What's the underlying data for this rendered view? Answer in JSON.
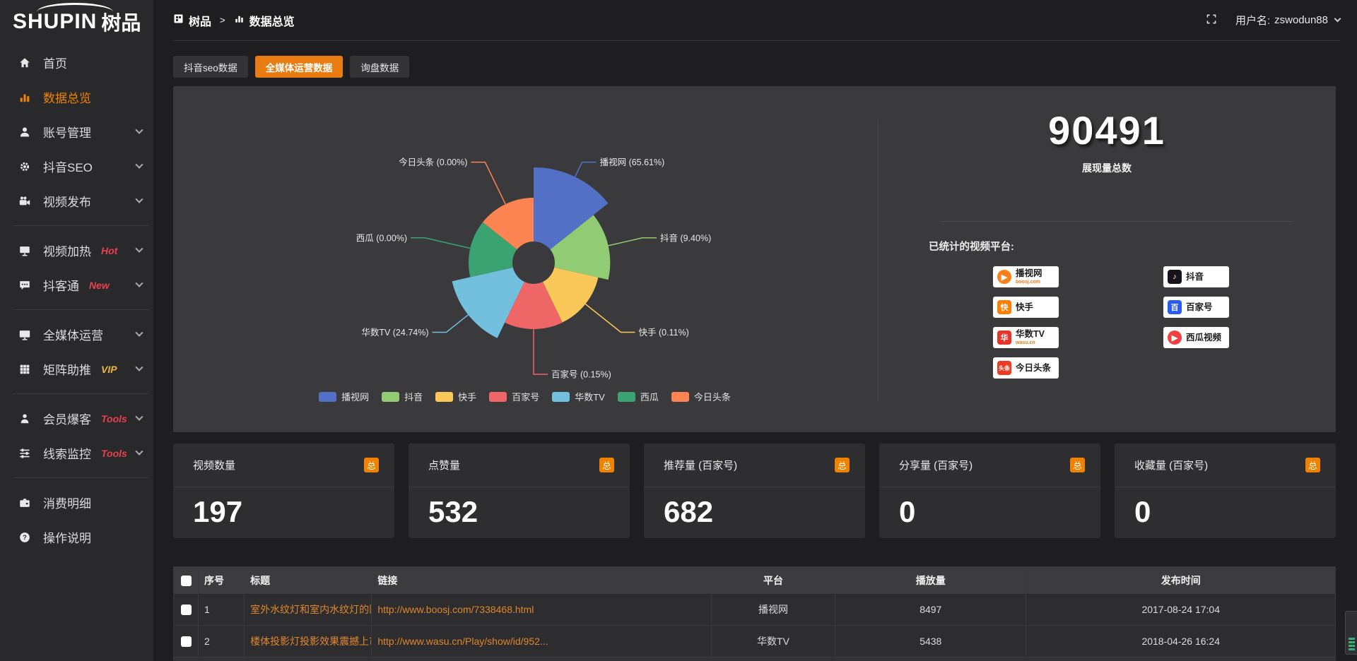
{
  "topbar": {
    "breadcrumb_root": "树品",
    "breadcrumb_separator": ">",
    "breadcrumb_current": "数据总览",
    "username_label": "用户名:",
    "username_value": "zswodun88"
  },
  "sidebar": {
    "logo_en": "SHUPIN",
    "logo_cn": "树品",
    "items": [
      {
        "key": "home",
        "label": "首页",
        "icon": "home-icon"
      },
      {
        "key": "data-overview",
        "label": "数据总览",
        "icon": "bar-chart-icon",
        "active": true
      },
      {
        "key": "account-management",
        "label": "账号管理",
        "icon": "user-icon",
        "chevron": true
      },
      {
        "key": "douyin-seo",
        "label": "抖音SEO",
        "icon": "gear-icon",
        "chevron": true
      },
      {
        "key": "video-publish",
        "label": "视频发布",
        "icon": "video-camera-icon",
        "chevron": true
      },
      {
        "divider": true
      },
      {
        "key": "video-heating",
        "label": "视频加热",
        "icon": "screen-icon",
        "tag": "Hot",
        "tag_color": "#e8414d",
        "chevron": true
      },
      {
        "key": "douketong",
        "label": "抖客通",
        "icon": "chat-icon",
        "tag": "New",
        "tag_color": "#e8414d",
        "chevron": true
      },
      {
        "divider": true
      },
      {
        "key": "media-operation",
        "label": "全媒体运营",
        "icon": "monitor-icon",
        "chevron": true
      },
      {
        "key": "matrix-boost",
        "label": "矩阵助推",
        "icon": "grid-icon",
        "tag": "VIP",
        "tag_color": "#edb63c",
        "chevron": true
      },
      {
        "divider": true
      },
      {
        "key": "member-baoke",
        "label": "会员爆客",
        "icon": "person-icon",
        "tag": "Tools",
        "tag_color": "#e8414d",
        "chevron": true
      },
      {
        "key": "clue-monitor",
        "label": "线索监控",
        "icon": "sliders-icon",
        "tag": "Tools",
        "tag_color": "#e8414d",
        "chevron": true
      },
      {
        "divider": true
      },
      {
        "key": "consumption-detail",
        "label": "消费明细",
        "icon": "wallet-icon"
      },
      {
        "key": "instructions",
        "label": "操作说明",
        "icon": "help-icon"
      }
    ]
  },
  "tabs": {
    "active_index": 1,
    "items": [
      "抖音seo数据",
      "全媒体运营数据",
      "询盘数据"
    ]
  },
  "chart_data": {
    "type": "pie",
    "variant": "nightingale-rose",
    "legend_position": "bottom",
    "items": [
      {
        "name": "播视网",
        "value_pct": 65.61,
        "label": "播视网 (65.61%)",
        "color": "#5470c6"
      },
      {
        "name": "抖音",
        "value_pct": 9.4,
        "label": "抖音 (9.40%)",
        "color": "#91cc75"
      },
      {
        "name": "快手",
        "value_pct": 0.11,
        "label": "快手 (0.11%)",
        "color": "#fac858"
      },
      {
        "name": "百家号",
        "value_pct": 0.15,
        "label": "百家号 (0.15%)",
        "color": "#ee6666"
      },
      {
        "name": "华数TV",
        "value_pct": 24.74,
        "label": "华数TV (24.74%)",
        "color": "#73c0de"
      },
      {
        "name": "西瓜",
        "value_pct": 0.0,
        "label": "西瓜 (0.00%)",
        "color": "#3ba272"
      },
      {
        "name": "今日头条",
        "value_pct": 0.0,
        "label": "今日头条 (0.00%)",
        "color": "#fc8452"
      }
    ]
  },
  "summary": {
    "value": "90491",
    "label": "展现量总数",
    "platforms_heading": "已统计的视频平台:",
    "platforms_left": [
      {
        "icon": "boosj-logo",
        "name": "播视网",
        "sub": "boosj.com",
        "color": "#f97f18"
      },
      {
        "icon": "kuaishou-logo",
        "name": "快手",
        "color": "#ff7e00"
      },
      {
        "icon": "wasu-logo",
        "name": "华数TV",
        "sub": "wasu.cn",
        "color": "#e8332a"
      },
      {
        "icon": "toutiao-logo",
        "name": "今日头条",
        "color": "#ed3a21"
      }
    ],
    "platforms_right": [
      {
        "icon": "douyin-logo",
        "name": "抖音",
        "color": "#17121c"
      },
      {
        "icon": "baijiahao-logo",
        "name": "百家号",
        "color": "#2a5cf0"
      },
      {
        "icon": "xigua-logo",
        "name": "西瓜视频",
        "color": "#f04142"
      }
    ]
  },
  "stat_cards": [
    {
      "title": "视频数量",
      "badge": "总",
      "value": "197"
    },
    {
      "title": "点赞量",
      "badge": "总",
      "value": "532"
    },
    {
      "title": "推荐量 (百家号)",
      "badge": "总",
      "value": "682"
    },
    {
      "title": "分享量 (百家号)",
      "badge": "总",
      "value": "0"
    },
    {
      "title": "收藏量 (百家号)",
      "badge": "总",
      "value": "0"
    }
  ],
  "table": {
    "columns": [
      "序号",
      "标题",
      "链接",
      "平台",
      "播放量",
      "发布时间"
    ],
    "rows": [
      {
        "index": "1",
        "title": "室外水纹灯和室内水纹灯的区别和简介",
        "link": "http://www.boosj.com/7338468.html",
        "platform": "播视网",
        "plays": "8497",
        "publish_time": "2017-08-24 17:04"
      },
      {
        "index": "2",
        "title": "楼体投影灯投影效果震撼上市",
        "link": "http://www.wasu.cn/Play/show/id/952...",
        "platform": "华数TV",
        "plays": "5438",
        "publish_time": "2018-04-26 16:24"
      }
    ]
  }
}
